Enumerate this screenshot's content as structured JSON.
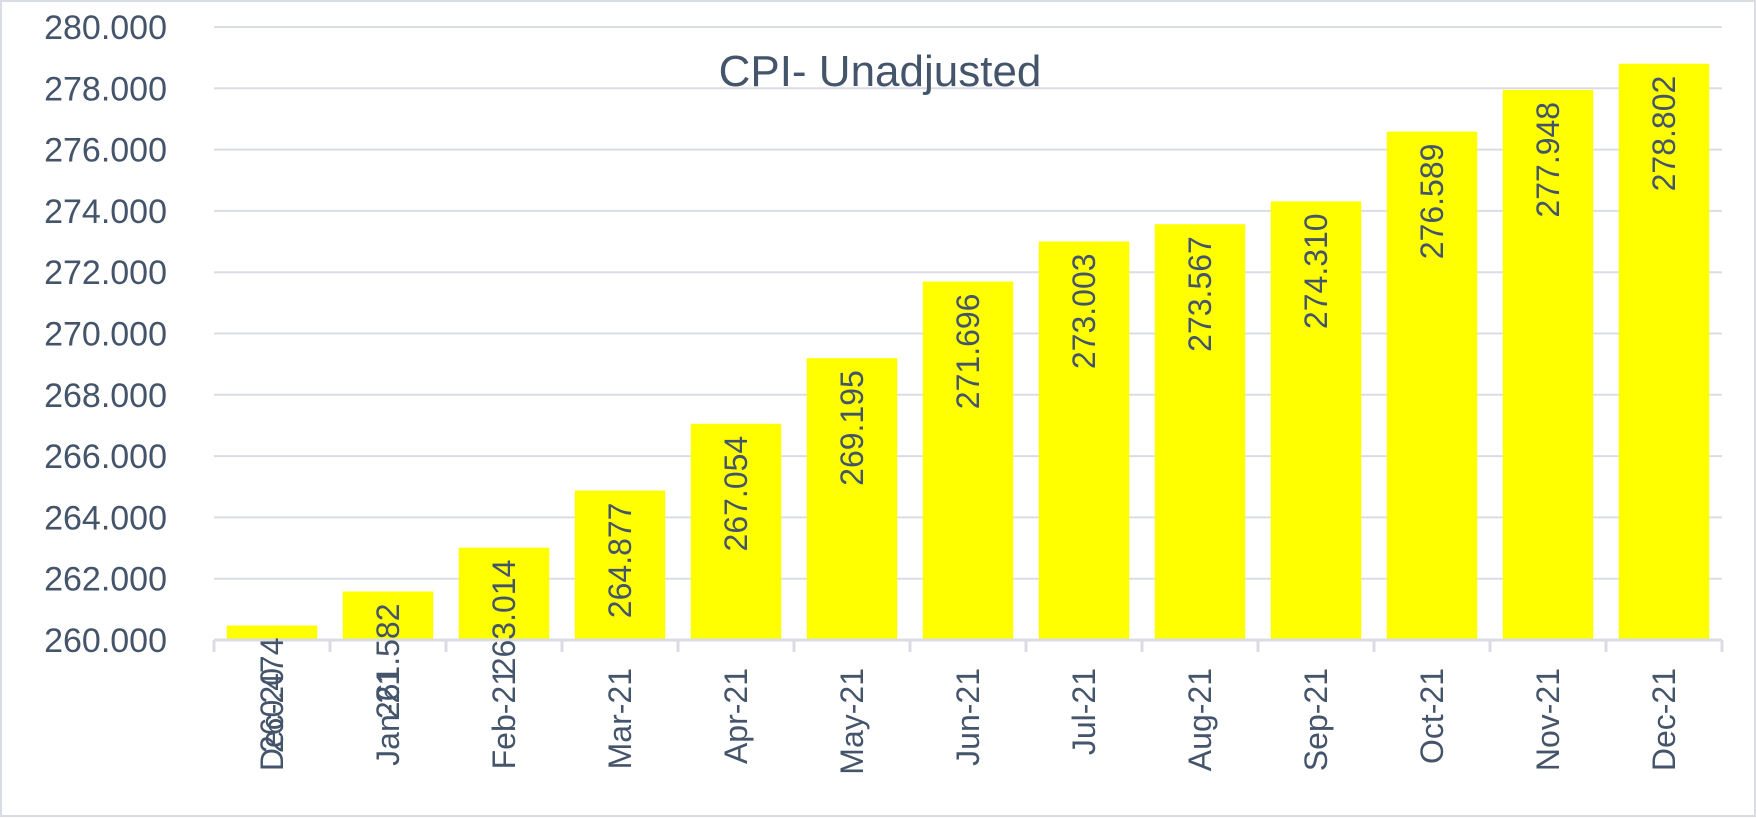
{
  "chart_data": {
    "type": "bar",
    "title": "CPI- Unadjusted",
    "xlabel": "",
    "ylabel": "",
    "categories": [
      "Dec-20",
      "Jan-21",
      "Feb-21",
      "Mar-21",
      "Apr-21",
      "May-21",
      "Jun-21",
      "Jul-21",
      "Aug-21",
      "Sep-21",
      "Oct-21",
      "Nov-21",
      "Dec-21"
    ],
    "values": [
      260.474,
      261.582,
      263.014,
      264.877,
      267.054,
      269.195,
      271.696,
      273.003,
      273.567,
      274.31,
      276.589,
      277.948,
      278.802
    ],
    "data_labels": [
      "260.474",
      "261.582",
      "263.014",
      "264.877",
      "267.054",
      "269.195",
      "271.696",
      "273.003",
      "273.567",
      "274.310",
      "276.589",
      "277.948",
      "278.802"
    ],
    "ylim": [
      260,
      280
    ],
    "yticks": [
      260,
      262,
      264,
      266,
      268,
      270,
      272,
      274,
      276,
      278,
      280
    ],
    "ytick_labels": [
      "260.000",
      "262.000",
      "264.000",
      "266.000",
      "268.000",
      "270.000",
      "272.000",
      "274.000",
      "276.000",
      "278.000",
      "280.000"
    ],
    "grid": true,
    "legend": "none",
    "bar_color": "#ffff00",
    "text_color": "#44546a",
    "grid_color": "#d9dde3"
  }
}
